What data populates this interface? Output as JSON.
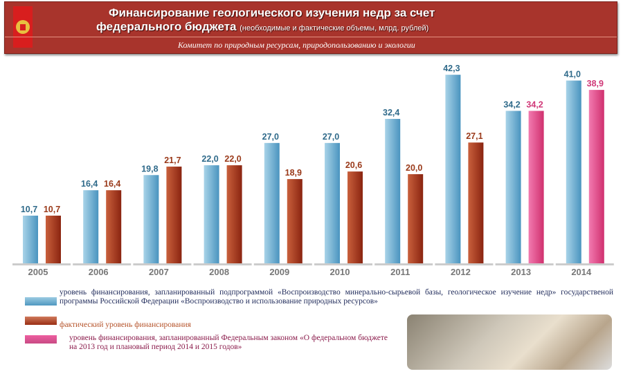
{
  "header": {
    "title_line1": "Финансирование геологического изучения недр за счет",
    "title_line2": "федерального бюджета",
    "title_sub": "(необходимые и фактические объемы, млрд. рублей)",
    "committee": "Комитет по природным ресурсам, природопользованию и экологии"
  },
  "chart_data": {
    "type": "bar",
    "title": "Финансирование геологического изучения недр за счет федерального бюджета",
    "categories": [
      "2005",
      "2006",
      "2007",
      "2008",
      "2009",
      "2010",
      "2011",
      "2012",
      "2013",
      "2014"
    ],
    "ylim": [
      0,
      45
    ],
    "series": [
      {
        "name": "planned_program",
        "color": "#5ba6cc",
        "values": [
          10.7,
          16.4,
          19.8,
          22.0,
          27.0,
          27.0,
          32.4,
          42.3,
          34.2,
          41.0
        ],
        "labels": [
          "10,7",
          "16,4",
          "19,8",
          "22,0",
          "27,0",
          "27,0",
          "32,4",
          "42,3",
          "34,2",
          "41,0"
        ]
      },
      {
        "name": "actual",
        "color": "#a8381e",
        "values": [
          10.7,
          16.4,
          21.7,
          22.0,
          18.9,
          20.6,
          20.0,
          27.1,
          null,
          null
        ],
        "labels": [
          "10,7",
          "16,4",
          "21,7",
          "22,0",
          "18,9",
          "20,6",
          "20,0",
          "27,1",
          null,
          null
        ]
      },
      {
        "name": "planned_law",
        "color": "#e0457e",
        "values": [
          null,
          null,
          null,
          null,
          null,
          null,
          null,
          null,
          34.2,
          38.9
        ],
        "labels": [
          null,
          null,
          null,
          null,
          null,
          null,
          null,
          null,
          "34,2",
          "38,9"
        ]
      }
    ]
  },
  "legend": [
    {
      "text": "уровень финансирования, запланированный подпрограммой «Воспроизводство минерально-сырьевой базы, геологическое изучение недр» государственой программы Российской Федерации «Воспроизводство и использование природных ресурсов»",
      "color": "#5ba6cc",
      "text_color": "#1f2a5a"
    },
    {
      "text": "фактический уровень финансирования",
      "color": "#a8381e",
      "text_color": "#b5532a"
    },
    {
      "text": "уровень финансирования, запланированный Федеральным законом «О федеральном бюджете на 2013 год и плановый период 2014 и 2015 годов»",
      "color": "#e0457e",
      "text_color": "#8a1a4a"
    }
  ]
}
